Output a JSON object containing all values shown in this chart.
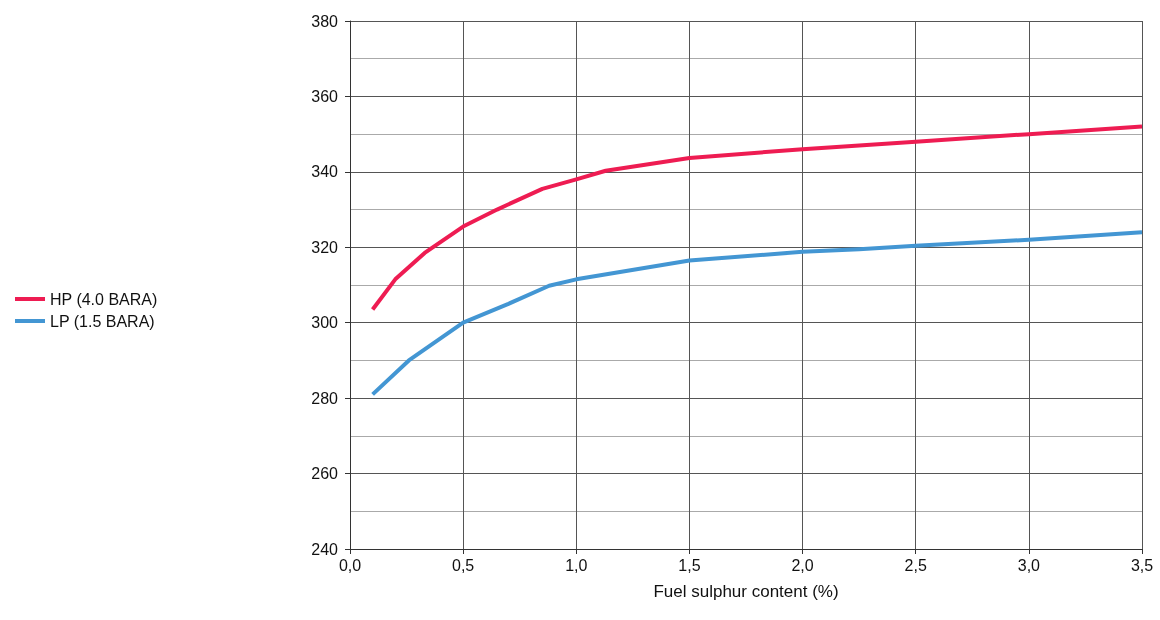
{
  "chart_data": {
    "type": "line",
    "xlabel": "Fuel sulphur content (%)",
    "xlim": [
      0,
      3.5
    ],
    "xticks": [
      {
        "value": 0,
        "label": "0,0"
      },
      {
        "value": 0.5,
        "label": "0,5"
      },
      {
        "value": 1,
        "label": "1,0"
      },
      {
        "value": 1.5,
        "label": "1,5"
      },
      {
        "value": 2,
        "label": "2,0"
      },
      {
        "value": 2.5,
        "label": "2,5"
      },
      {
        "value": 3,
        "label": "3,0"
      },
      {
        "value": 3.5,
        "label": "3,5"
      }
    ],
    "ylim": [
      240,
      380
    ],
    "yticks": [
      240,
      260,
      280,
      300,
      320,
      340,
      360,
      380
    ],
    "grid": true,
    "legend": "left",
    "marker": "none",
    "line_style": "solid",
    "series": [
      {
        "name": "HP (4.0 BARA)",
        "color": "#ee1c52",
        "x": [
          0.1,
          0.2,
          0.33,
          0.5,
          0.65,
          0.85,
          1.0,
          1.13,
          1.5,
          2.0,
          2.5,
          3.0,
          3.5
        ],
        "values": [
          303.5,
          311.5,
          318.5,
          325.5,
          330,
          335.5,
          338,
          340.3,
          343.7,
          346,
          348,
          350,
          352
        ]
      },
      {
        "name": "LP (1.5 BARA)",
        "color": "#4396d3",
        "x": [
          0.1,
          0.26,
          0.5,
          0.7,
          0.88,
          1.0,
          1.5,
          2.0,
          2.25,
          2.5,
          3.0,
          3.5
        ],
        "values": [
          281,
          290,
          300,
          305,
          309.8,
          311.5,
          316.5,
          318.8,
          319.5,
          320.4,
          322,
          324
        ]
      }
    ]
  }
}
